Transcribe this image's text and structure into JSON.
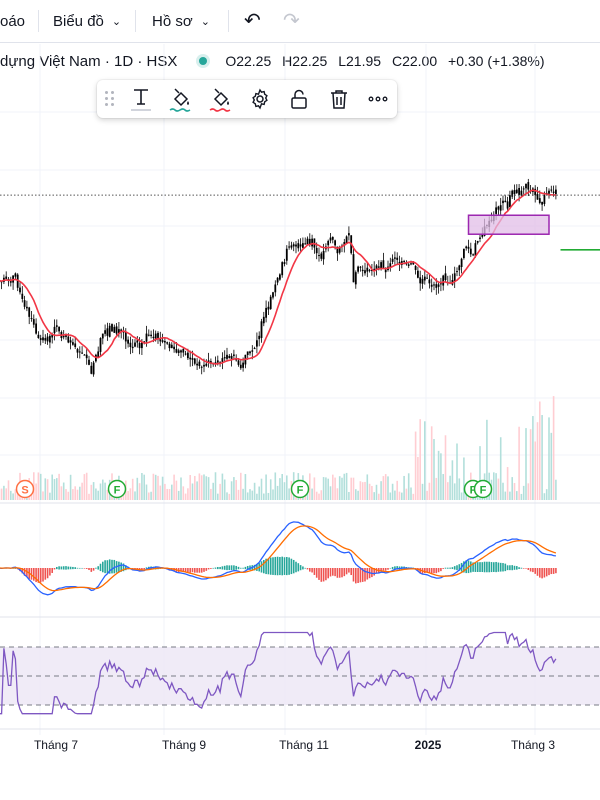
{
  "topbar": {
    "report_label": "oáo",
    "chart_menu_label": "Biểu đồ",
    "profile_menu_label": "Hồ sơ",
    "undo_icon": "undo-icon",
    "redo_icon": "redo-icon"
  },
  "symbol": {
    "title": "dựng Việt Nam · 1D · HSX",
    "status_color": "#26a69a",
    "ohlc": {
      "o_label": "O",
      "o": "22.25",
      "h_label": "H",
      "h": "22.25",
      "l_label": "L",
      "l": "21.95",
      "c_label": "C",
      "c": "22.00",
      "change": "+0.30 (+1.38%)"
    }
  },
  "drawing_toolbar": {
    "icons": [
      "drag-handle-icon",
      "text-icon",
      "fill-color-icon",
      "line-color-icon",
      "settings-gear-icon",
      "unlock-icon",
      "trash-icon",
      "more-icon"
    ]
  },
  "chart_data": [
    {
      "type": "candlestick",
      "title": "",
      "x_ticks": [
        "Tháng 7",
        "Tháng 9",
        "Tháng 11",
        "2025",
        "Tháng 3"
      ],
      "closes": [
        17.65,
        17.6,
        17.55,
        17.75,
        17.7,
        17.6,
        17.6,
        17.85,
        17.8,
        17.3,
        17.1,
        16.8,
        16.45,
        16.45,
        16.0,
        15.95,
        15.65,
        15.25,
        15.05,
        15.05,
        14.95,
        15.05,
        14.9,
        15.15,
        15.2,
        15.55,
        15.55,
        15.35,
        15.05,
        15.15,
        15.1,
        14.85,
        14.85,
        14.75,
        14.65,
        14.4,
        14.45,
        14.4,
        14.3,
        14.15,
        13.85,
        13.45,
        13.95,
        14.3,
        14.45,
        15.05,
        15.25,
        15.4,
        15.15,
        15.6,
        15.35,
        15.55,
        15.25,
        15.45,
        15.35,
        15.3,
        14.9,
        14.8,
        14.65,
        14.6,
        14.85,
        14.85,
        14.6,
        14.85,
        14.9,
        15.25,
        15.2,
        15.2,
        15.05,
        15.25,
        15.05,
        14.9,
        14.95,
        14.85,
        14.8,
        14.6,
        14.75,
        14.55,
        14.4,
        14.5,
        14.5,
        14.4,
        14.35,
        14.15,
        14.1,
        14.15,
        13.9,
        13.9,
        13.8,
        13.75,
        13.85,
        13.9,
        14.05,
        13.9,
        13.9,
        13.95,
        14.05,
        13.9,
        14.15,
        14.2,
        14.3,
        14.15,
        14.25,
        14.25,
        14.05,
        13.85,
        13.7,
        13.95,
        14.3,
        14.45,
        14.45,
        14.5,
        14.6,
        14.95,
        15.15,
        15.8,
        16.0,
        16.4,
        16.45,
        16.9,
        17.1,
        17.45,
        17.75,
        17.9,
        18.45,
        18.45,
        19.05,
        19.15,
        19.1,
        19.25,
        19.15,
        19.3,
        19.15,
        19.3,
        19.25,
        19.5,
        19.25,
        19.5,
        19.1,
        18.85,
        18.75,
        18.6,
        18.95,
        19.15,
        19.4,
        19.55,
        19.45,
        19.2,
        18.85,
        19.1,
        19.15,
        19.35,
        19.6,
        19.75,
        18.85,
        17.55,
        18.0,
        18.25,
        18.2,
        18.05,
        17.95,
        18.2,
        18.1,
        18.05,
        18.15,
        18.3,
        18.2,
        18.45,
        18.15,
        18.0,
        18.25,
        18.4,
        18.6,
        18.6,
        18.55,
        18.4,
        18.5,
        18.5,
        18.35,
        18.35,
        18.4,
        18.35,
        18.1,
        17.75,
        17.5,
        17.7,
        17.8,
        17.75,
        17.5,
        17.35,
        17.45,
        17.3,
        17.45,
        17.5,
        17.85,
        17.65,
        17.5,
        17.5,
        17.65,
        17.95,
        18.05,
        18.3,
        18.6,
        19.05,
        19.15,
        19.05,
        18.8,
        18.8,
        19.3,
        19.4,
        19.55,
        19.7,
        20.05,
        20.1,
        20.3,
        20.35,
        20.55,
        20.9,
        20.8,
        21.0,
        21.2,
        21.2,
        20.85,
        21.45,
        21.65,
        21.5,
        21.7,
        21.45,
        21.65,
        21.75,
        21.95,
        21.7,
        21.6,
        21.75,
        21.45,
        21.25,
        21.1,
        21.15,
        21.45,
        21.55,
        21.65,
        21.7,
        21.55,
        21.7
      ],
      "ma_color": "#f23645",
      "horizontal_line": 21.45,
      "rectangle": {
        "from_price": 19.7,
        "to_price": 20.55,
        "fill": "#e1bee7",
        "border": "#9c27b0"
      },
      "green_segment_price": 19.0,
      "events": [
        {
          "label": "S",
          "color": "#ff7043"
        },
        {
          "label": "F",
          "color": "#22ab34"
        },
        {
          "label": "F",
          "color": "#22ab34"
        },
        {
          "label": "F",
          "color": "#22ab34"
        },
        {
          "label": "F",
          "color": "#22ab34"
        }
      ],
      "volume_up_color": "#b2dfdb",
      "volume_down_color": "#ffcdd2"
    },
    {
      "type": "line",
      "name": "",
      "series": [
        {
          "name": "",
          "color": "#2962ff"
        },
        {
          "name": "",
          "color": "#ff6d00"
        }
      ],
      "histogram_colors": [
        "#26a69a",
        "#ef5350"
      ]
    },
    {
      "type": "line",
      "name": "",
      "band": [
        30,
        70
      ],
      "mid": 50,
      "band_fill": "#ede7f6",
      "line_color": "#7e57c2"
    }
  ]
}
